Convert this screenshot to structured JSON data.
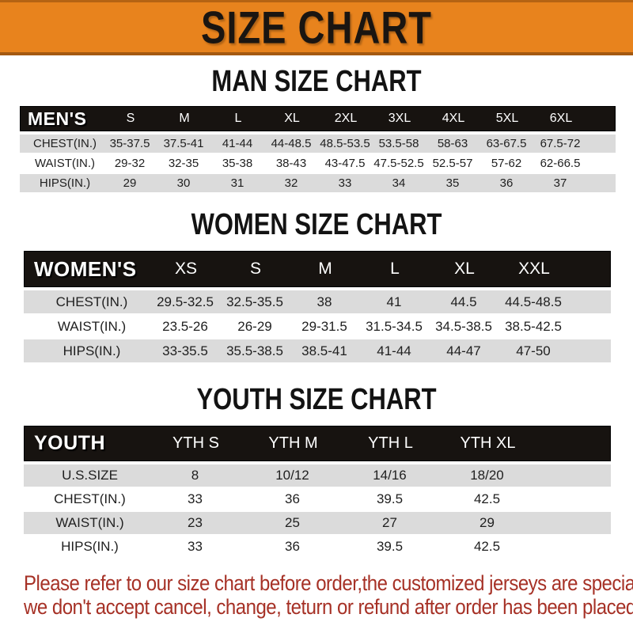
{
  "theme": {
    "banner_bg": "#E8831D",
    "banner_text": "#1A1511",
    "header_bar_bg": "#171310",
    "header_bar_text": "#FFFFFF",
    "row_shade_bg": "#DBDBDB",
    "body_text": "#1F1F1F",
    "footer_text": "#A63126"
  },
  "banner": {
    "title": "SIZE CHART"
  },
  "sections": [
    {
      "key": "men",
      "heading": "MAN SIZE CHART",
      "table": {
        "corner_label": "MEN'S",
        "columns": [
          "S",
          "M",
          "L",
          "XL",
          "2XL",
          "3XL",
          "4XL",
          "5XL",
          "6XL"
        ],
        "rows": [
          {
            "label": "CHEST(IN.)",
            "values": [
              "35-37.5",
              "37.5-41",
              "41-44",
              "44-48.5",
              "48.5-53.5",
              "53.5-58",
              "58-63",
              "63-67.5",
              "67.5-72"
            ]
          },
          {
            "label": "WAIST(IN.)",
            "values": [
              "29-32",
              "32-35",
              "35-38",
              "38-43",
              "43-47.5",
              "47.5-52.5",
              "52.5-57",
              "57-62",
              "62-66.5"
            ]
          },
          {
            "label": "HIPS(IN.)",
            "values": [
              "29",
              "30",
              "31",
              "32",
              "33",
              "34",
              "35",
              "36",
              "37"
            ]
          }
        ]
      }
    },
    {
      "key": "women",
      "heading": "WOMEN SIZE CHART",
      "table": {
        "corner_label": "WOMEN'S",
        "columns": [
          "XS",
          "S",
          "M",
          "L",
          "XL",
          "XXL"
        ],
        "rows": [
          {
            "label": "CHEST(IN.)",
            "values": [
              "29.5-32.5",
              "32.5-35.5",
              "38",
              "41",
              "44.5",
              "44.5-48.5"
            ]
          },
          {
            "label": "WAIST(IN.)",
            "values": [
              "23.5-26",
              "26-29",
              "29-31.5",
              "31.5-34.5",
              "34.5-38.5",
              "38.5-42.5"
            ]
          },
          {
            "label": "HIPS(IN.)",
            "values": [
              "33-35.5",
              "35.5-38.5",
              "38.5-41",
              "41-44",
              "44-47",
              "47-50"
            ]
          }
        ]
      }
    },
    {
      "key": "youth",
      "heading": "YOUTH SIZE CHART",
      "table": {
        "corner_label": "YOUTH",
        "columns": [
          "YTH S",
          "YTH M",
          "YTH L",
          "YTH XL"
        ],
        "rows": [
          {
            "label": "U.S.SIZE",
            "values": [
              "8",
              "10/12",
              "14/16",
              "18/20"
            ]
          },
          {
            "label": "CHEST(IN.)",
            "values": [
              "33",
              "36",
              "39.5",
              "42.5"
            ]
          },
          {
            "label": "WAIST(IN.)",
            "values": [
              "23",
              "25",
              "27",
              "29"
            ]
          },
          {
            "label": "HIPS(IN.)",
            "values": [
              "33",
              "36",
              "39.5",
              "42.5"
            ]
          }
        ]
      }
    }
  ],
  "footer": {
    "lines": [
      "Please refer to our size chart before order,the customized jerseys are special products,",
      "we don't accept cancel, change, teturn or refund after order has been placed!"
    ]
  }
}
